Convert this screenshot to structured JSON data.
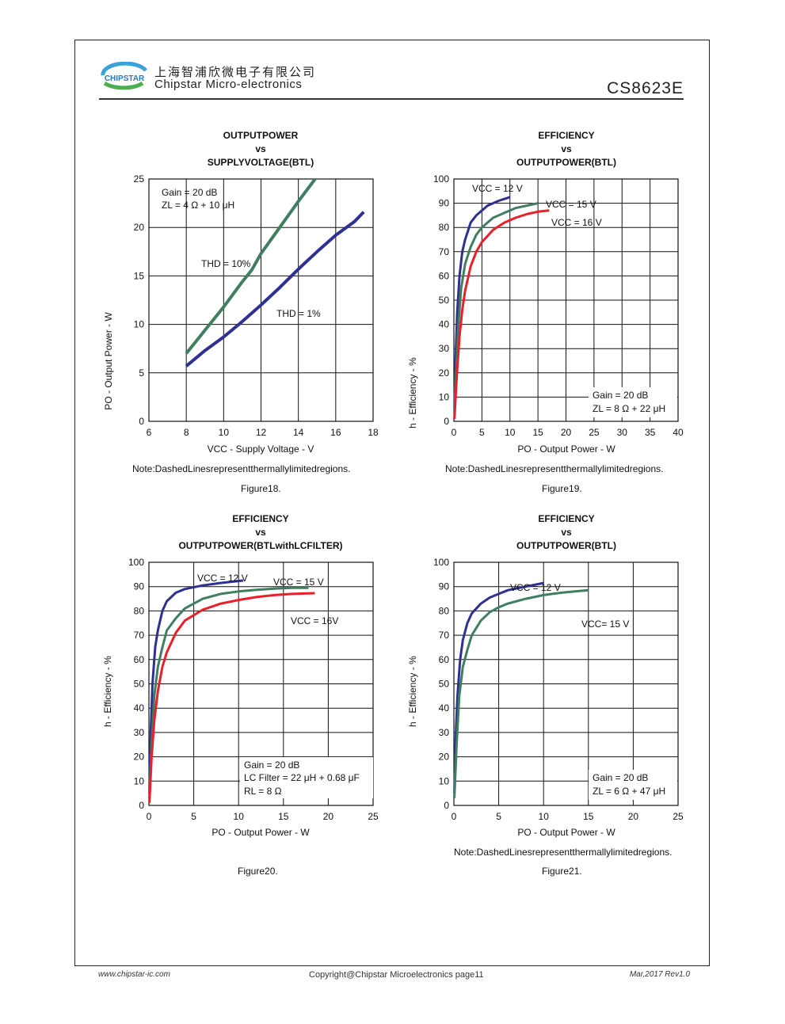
{
  "header": {
    "company_cn": "上海智浦欣微电子有限公司",
    "company_en": "Chipstar Micro-electronics",
    "logo_text": "CHIPSTAR",
    "part_number": "CS8623E"
  },
  "footer": {
    "left": "www.chipstar-ic.com",
    "center": "Copyright@Chipstar Microelectronics    page11",
    "right": "Mar,2017  Rev1.0"
  },
  "captions": {
    "fig18": "Figure18.",
    "fig19": "Figure19.",
    "fig20": "Figure20.",
    "fig21": "Figure21.",
    "note18": "Note:DashedLinesrepresentthermallylimitedregions.",
    "note19": "Note:DashedLinesrepresentthermallylimitedregions.",
    "note21": "Note:DashedLinesrepresentthermallylimitedregions."
  },
  "colors": {
    "navy": "#2e3192",
    "green": "#3f7f5f",
    "red": "#e8202a",
    "grid": "#111111"
  },
  "chart_data": [
    {
      "id": "fig18",
      "type": "line",
      "title": [
        "OUTPUTPOWER",
        "vs",
        "SUPPLYVOLTAGE(BTL)"
      ],
      "xlabel": "VCC - Supply Voltage - V",
      "ylabel": "PO - Output Power - W",
      "xlim": [
        6,
        18
      ],
      "ylim": [
        0,
        25
      ],
      "xticks": [
        6,
        8,
        10,
        12,
        14,
        16,
        18
      ],
      "yticks": [
        0,
        5,
        10,
        15,
        20,
        25
      ],
      "annotations": [
        "Gain = 20 dB",
        "ZL = 4 Ω + 10 μH",
        "THD = 10%",
        "THD = 1%"
      ],
      "series": [
        {
          "name": "THD = 10%",
          "color": "#3f7f5f",
          "x": [
            8,
            9,
            10,
            11,
            11.5,
            12,
            13,
            14,
            14.9
          ],
          "y": [
            7,
            9.4,
            11.8,
            14.4,
            15.6,
            17.3,
            20,
            22.7,
            25
          ]
        },
        {
          "name": "THD = 1%",
          "color": "#2e3192",
          "x": [
            8,
            9,
            10,
            11,
            12,
            13,
            14,
            15,
            16,
            17,
            17.5
          ],
          "y": [
            5.7,
            7.3,
            8.7,
            10.3,
            12,
            13.8,
            15.7,
            17.5,
            19.2,
            20.6,
            21.6
          ]
        }
      ]
    },
    {
      "id": "fig19",
      "type": "line",
      "title": [
        "EFFICIENCY",
        "vs",
        "OUTPUTPOWER(BTL)"
      ],
      "xlabel": "PO - Output Power - W",
      "ylabel": "h - Efficiency - %",
      "xlim": [
        0,
        40
      ],
      "ylim": [
        0,
        100
      ],
      "xticks": [
        0,
        5,
        10,
        15,
        20,
        25,
        30,
        35,
        40
      ],
      "yticks": [
        0,
        10,
        20,
        30,
        40,
        50,
        60,
        70,
        80,
        90,
        100
      ],
      "annotations": [
        "Gain = 20 dB",
        "ZL = 8 Ω + 22 μH"
      ],
      "series": [
        {
          "name": "VCC = 12 V",
          "color": "#2e3192",
          "x": [
            0.1,
            0.3,
            0.6,
            1,
            1.5,
            2,
            3,
            4,
            5,
            6,
            8,
            10
          ],
          "y": [
            5,
            25,
            45,
            60,
            70,
            75,
            82,
            85,
            87,
            89,
            91,
            92.5
          ]
        },
        {
          "name": "VCC = 15 V",
          "color": "#3f7f5f",
          "x": [
            0.1,
            0.4,
            0.8,
            1.3,
            2,
            3,
            4,
            5,
            7,
            9,
            11,
            13,
            15
          ],
          "y": [
            3,
            20,
            40,
            55,
            65,
            72,
            77,
            80,
            84,
            86,
            88,
            89,
            90
          ]
        },
        {
          "name": "VCC = 16 V",
          "color": "#e8202a",
          "x": [
            0.1,
            0.5,
            1,
            1.5,
            2,
            3,
            4,
            5,
            7,
            9,
            11,
            13,
            15,
            17
          ],
          "y": [
            1,
            18,
            35,
            46,
            54,
            64,
            70,
            74,
            79,
            82,
            84,
            85.5,
            86.5,
            87
          ]
        }
      ]
    },
    {
      "id": "fig20",
      "type": "line",
      "title": [
        "EFFICIENCY",
        "vs",
        "OUTPUTPOWER(BTLwithLCFILTER)"
      ],
      "xlabel": "PO - Output Power - W",
      "ylabel": "h - Efficiency - %",
      "xlim": [
        0,
        25
      ],
      "ylim": [
        0,
        100
      ],
      "xticks": [
        0,
        5,
        10,
        15,
        20,
        25
      ],
      "yticks": [
        0,
        10,
        20,
        30,
        40,
        50,
        60,
        70,
        80,
        90,
        100
      ],
      "annotations": [
        "Gain = 20 dB",
        "LC Filter = 22 μH + 0.68 μF",
        "RL = 8 Ω"
      ],
      "series": [
        {
          "name": "VCC = 12 V",
          "color": "#2e3192",
          "x": [
            0.05,
            0.2,
            0.4,
            0.7,
            1,
            1.5,
            2,
            3,
            4,
            6,
            8,
            10.5
          ],
          "y": [
            5,
            30,
            50,
            65,
            72,
            80,
            84,
            87.5,
            89,
            90.5,
            91.5,
            92.5
          ]
        },
        {
          "name": "VCC = 15 V",
          "color": "#3f7f5f",
          "x": [
            0.05,
            0.3,
            0.6,
            1,
            1.5,
            2,
            3,
            4,
            6,
            8,
            10,
            12,
            14,
            16,
            17.8
          ],
          "y": [
            3,
            25,
            45,
            57,
            65,
            72,
            77,
            81,
            85,
            87,
            88,
            88.7,
            89.2,
            89.5,
            89.5
          ]
        },
        {
          "name": "VCC = 16V",
          "color": "#e8202a",
          "x": [
            0.05,
            0.3,
            0.6,
            1,
            1.5,
            2,
            3,
            4,
            6,
            8,
            10,
            12,
            14,
            16,
            18.5
          ],
          "y": [
            1,
            20,
            35,
            47,
            57,
            63,
            71,
            76,
            80.5,
            83,
            84.5,
            85.7,
            86.5,
            87,
            87.3
          ]
        }
      ]
    },
    {
      "id": "fig21",
      "type": "line",
      "title": [
        "EFFICIENCY",
        "vs",
        "OUTPUTPOWER(BTL)"
      ],
      "xlabel": "PO - Output Power - W",
      "ylabel": "h - Efficiency - %",
      "xlim": [
        0,
        25
      ],
      "ylim": [
        0,
        100
      ],
      "xticks": [
        0,
        5,
        10,
        15,
        20,
        25
      ],
      "yticks": [
        0,
        10,
        20,
        30,
        40,
        50,
        60,
        70,
        80,
        90,
        100
      ],
      "annotations": [
        "Gain = 20 dB",
        "ZL = 6 Ω + 47 μH"
      ],
      "series": [
        {
          "name": "VCC = 12 V",
          "color": "#2e3192",
          "x": [
            0.05,
            0.2,
            0.4,
            0.7,
            1,
            1.5,
            2,
            2.5,
            3,
            4,
            5,
            6,
            8,
            10
          ],
          "y": [
            5,
            28,
            45,
            60,
            68,
            75,
            79,
            81,
            83,
            85.5,
            87,
            88.5,
            90,
            91.5
          ]
        },
        {
          "name": "VCC= 15 V",
          "color": "#3f7f5f",
          "x": [
            0.05,
            0.3,
            0.6,
            1,
            1.5,
            2,
            3,
            4,
            5,
            6,
            8,
            10,
            12,
            13.5,
            15
          ],
          "y": [
            3,
            25,
            45,
            57,
            64,
            70,
            76,
            79.5,
            81.5,
            83,
            85,
            86.5,
            87.5,
            88,
            88.5
          ]
        }
      ]
    }
  ]
}
